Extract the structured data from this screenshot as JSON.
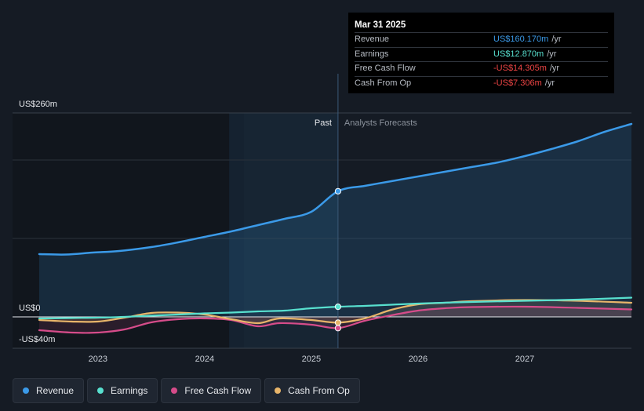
{
  "chart_data": {
    "type": "line",
    "title": "",
    "x_domain": [
      2022.2,
      2028.0
    ],
    "ylim": [
      -40,
      260
    ],
    "y_axis_labels": [
      {
        "value": 260,
        "label": "US$260m"
      },
      {
        "value": 0,
        "label": "US$0"
      },
      {
        "value": -40,
        "label": "-US$40m"
      }
    ],
    "x_ticks": [
      {
        "value": 2023,
        "label": "2023"
      },
      {
        "value": 2024,
        "label": "2024"
      },
      {
        "value": 2025,
        "label": "2025"
      },
      {
        "value": 2026,
        "label": "2026"
      },
      {
        "value": 2027,
        "label": "2027"
      }
    ],
    "past_label": "Past",
    "forecast_label": "Analysts Forecasts",
    "highlight_start": 2024.23,
    "divider_x": 2025.25,
    "series": [
      {
        "name": "Revenue",
        "color": "#3b9ae8",
        "fill": true,
        "points": [
          [
            2022.45,
            80
          ],
          [
            2022.7,
            79.5
          ],
          [
            2022.95,
            82
          ],
          [
            2023.2,
            84
          ],
          [
            2023.5,
            89
          ],
          [
            2023.75,
            95
          ],
          [
            2024.0,
            102
          ],
          [
            2024.25,
            109
          ],
          [
            2024.5,
            117
          ],
          [
            2024.75,
            125
          ],
          [
            2025.0,
            134
          ],
          [
            2025.25,
            160.17
          ],
          [
            2025.5,
            167
          ],
          [
            2025.75,
            173
          ],
          [
            2026.0,
            179
          ],
          [
            2026.25,
            185
          ],
          [
            2026.5,
            191
          ],
          [
            2026.75,
            197
          ],
          [
            2027.0,
            205
          ],
          [
            2027.25,
            214
          ],
          [
            2027.5,
            224
          ],
          [
            2027.75,
            236
          ],
          [
            2028.0,
            246
          ]
        ]
      },
      {
        "name": "Earnings",
        "color": "#58e0cf",
        "fill": false,
        "points": [
          [
            2022.45,
            -2
          ],
          [
            2022.75,
            -1.5
          ],
          [
            2023.0,
            -1
          ],
          [
            2023.25,
            0
          ],
          [
            2023.5,
            1.5
          ],
          [
            2023.75,
            3
          ],
          [
            2024.0,
            4.5
          ],
          [
            2024.25,
            5.5
          ],
          [
            2024.5,
            7
          ],
          [
            2024.75,
            8
          ],
          [
            2025.0,
            11
          ],
          [
            2025.25,
            12.87
          ],
          [
            2025.5,
            14
          ],
          [
            2025.75,
            15.5
          ],
          [
            2026.0,
            17
          ],
          [
            2026.5,
            19
          ],
          [
            2027.0,
            20.5
          ],
          [
            2027.5,
            22
          ],
          [
            2028.0,
            24.5
          ]
        ]
      },
      {
        "name": "Free Cash Flow",
        "color": "#d64c8a",
        "fill": true,
        "points": [
          [
            2022.45,
            -17
          ],
          [
            2022.75,
            -20
          ],
          [
            2023.0,
            -20
          ],
          [
            2023.25,
            -16
          ],
          [
            2023.5,
            -7
          ],
          [
            2023.75,
            -3
          ],
          [
            2024.0,
            -2
          ],
          [
            2024.25,
            -4
          ],
          [
            2024.5,
            -12
          ],
          [
            2024.7,
            -8
          ],
          [
            2025.0,
            -10
          ],
          [
            2025.25,
            -14.305
          ],
          [
            2025.5,
            -5
          ],
          [
            2025.75,
            2
          ],
          [
            2026.0,
            8
          ],
          [
            2026.25,
            11
          ],
          [
            2026.5,
            12.5
          ],
          [
            2027.0,
            13
          ],
          [
            2027.5,
            11.5
          ],
          [
            2028.0,
            9.5
          ]
        ]
      },
      {
        "name": "Cash From Op",
        "color": "#e8b56a",
        "fill": true,
        "points": [
          [
            2022.45,
            -4
          ],
          [
            2022.75,
            -6
          ],
          [
            2023.0,
            -6
          ],
          [
            2023.25,
            -1
          ],
          [
            2023.5,
            5
          ],
          [
            2023.75,
            5.5
          ],
          [
            2024.0,
            3
          ],
          [
            2024.25,
            -3
          ],
          [
            2024.5,
            -8
          ],
          [
            2024.7,
            -2
          ],
          [
            2025.0,
            -4
          ],
          [
            2025.25,
            -7.306
          ],
          [
            2025.5,
            -2
          ],
          [
            2025.75,
            9
          ],
          [
            2026.0,
            16
          ],
          [
            2026.25,
            18
          ],
          [
            2026.5,
            20
          ],
          [
            2027.0,
            21.5
          ],
          [
            2027.5,
            20.5
          ],
          [
            2028.0,
            18
          ]
        ]
      }
    ],
    "markers": [
      {
        "series": "Revenue",
        "x": 2025.25,
        "y": 160.17
      },
      {
        "series": "Earnings",
        "x": 2025.25,
        "y": 12.87
      },
      {
        "series": "Cash From Op",
        "x": 2025.25,
        "y": -7.306
      },
      {
        "series": "Free Cash Flow",
        "x": 2025.25,
        "y": -14.305
      }
    ],
    "tooltip": {
      "date": "Mar 31 2025",
      "rows": [
        {
          "name": "Revenue",
          "value": "US$160.170m",
          "unit": "/yr",
          "color": "#3b9ae8"
        },
        {
          "name": "Earnings",
          "value": "US$12.870m",
          "unit": "/yr",
          "color": "#58e0cf"
        },
        {
          "name": "Free Cash Flow",
          "value": "-US$14.305m",
          "unit": "/yr",
          "color": "#ef4545"
        },
        {
          "name": "Cash From Op",
          "value": "-US$7.306m",
          "unit": "/yr",
          "color": "#ef4545"
        }
      ]
    },
    "legend": [
      {
        "name": "Revenue",
        "color": "#3b9ae8"
      },
      {
        "name": "Earnings",
        "color": "#58e0cf"
      },
      {
        "name": "Free Cash Flow",
        "color": "#d64c8a"
      },
      {
        "name": "Cash From Op",
        "color": "#e8b56a"
      }
    ]
  }
}
